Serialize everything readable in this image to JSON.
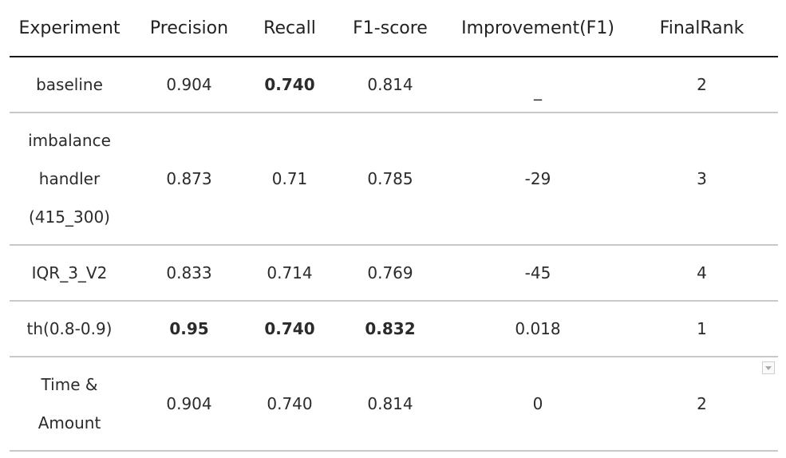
{
  "table": {
    "headers": [
      "Experiment",
      "Precision",
      "Recall",
      "F1-score",
      "Improvement(F1)",
      "FinalRank"
    ],
    "rows": [
      {
        "experiment": "baseline",
        "precision": "0.904",
        "recall": "0.740",
        "f1": "0.814",
        "improvement": "_",
        "rank": "2"
      },
      {
        "experiment": "imbalance handler (415_300)",
        "precision": "0.873",
        "recall": "0.71",
        "f1": "0.785",
        "improvement": "-29",
        "rank": "3"
      },
      {
        "experiment": "IQR_3_V2",
        "precision": "0.833",
        "recall": "0.714",
        "f1": "0.769",
        "improvement": "-45",
        "rank": "4"
      },
      {
        "experiment": "th(0.8-0.9)",
        "precision": "0.95",
        "recall": "0.740",
        "f1": "0.832",
        "improvement": "0.018",
        "rank": "1"
      },
      {
        "experiment": "Time & Amount",
        "precision": "0.904",
        "recall": "0.740",
        "f1": "0.814",
        "improvement": "0",
        "rank": "2"
      }
    ]
  },
  "colors": {
    "negative": "#c00000",
    "positive": "#5a9e3a",
    "header_rule": "#1a1a1a",
    "row_rule": "#c9c9c9"
  },
  "icons": {
    "filter": "dropdown-arrow-icon"
  }
}
